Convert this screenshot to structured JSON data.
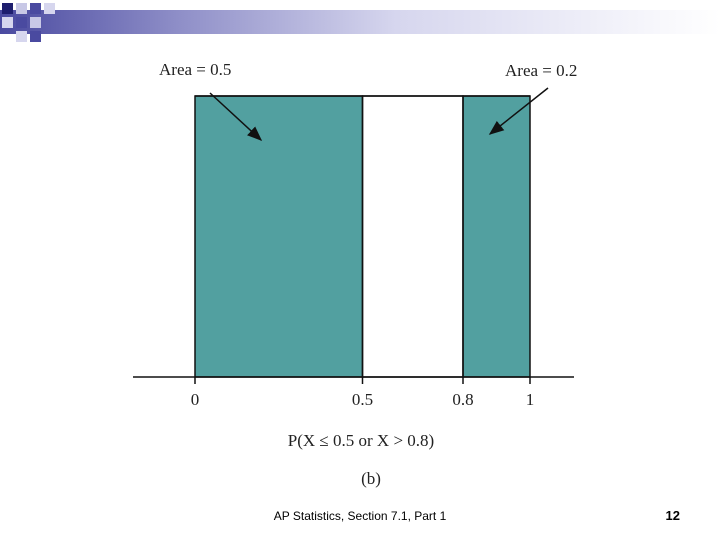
{
  "chart_data": {
    "type": "bar",
    "x_ticks": [
      "0",
      "0.5",
      "0.8",
      "1"
    ],
    "x_tick_values": [
      0,
      0.5,
      0.8,
      1
    ],
    "xlim": [
      0,
      1
    ],
    "density_height": 1,
    "shaded_regions": [
      {
        "x_start": 0,
        "x_end": 0.5,
        "color": "#52a0a0"
      },
      {
        "x_start": 0.8,
        "x_end": 1,
        "color": "#52a0a0"
      }
    ],
    "unshaded_regions": [
      {
        "x_start": 0.5,
        "x_end": 0.8
      }
    ],
    "annotations": [
      "Area = 0.5",
      "Area = 0.2"
    ],
    "xlabel": "P(X ≤ 0.5 or X > 0.8)",
    "caption": "(b)"
  },
  "footer": {
    "text": "AP Statistics, Section 7.1, Part 1",
    "page_number": "12"
  }
}
